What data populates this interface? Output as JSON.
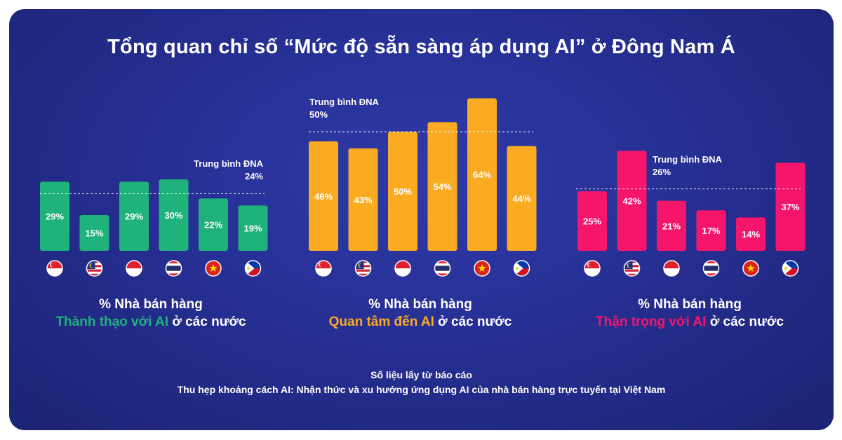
{
  "title": "Tổng quan chỉ số “Mức độ sẵn sàng áp dụng AI” ở Đông Nam Á",
  "countries": [
    {
      "name": "singapore-flag",
      "flag": "singapore"
    },
    {
      "name": "malaysia-flag",
      "flag": "malaysia"
    },
    {
      "name": "indonesia-flag",
      "flag": "indonesia"
    },
    {
      "name": "thailand-flag",
      "flag": "thailand"
    },
    {
      "name": "vietnam-flag",
      "flag": "vietnam"
    },
    {
      "name": "philippines-flag",
      "flag": "philippines"
    }
  ],
  "panels": [
    {
      "line1": "% Nhà bán hàng",
      "highlight": "Thành thạo với AI",
      "suffix": " ở các nước",
      "color": "#1fb27a",
      "avg_label": "Trung bình ĐNA",
      "avg_value_label": "24%"
    },
    {
      "line1": "% Nhà bán hàng",
      "highlight": "Quan tâm đến AI",
      "suffix": " ở các nước",
      "color": "#fbab22",
      "avg_label": "Trung bình ĐNA",
      "avg_value_label": "50%"
    },
    {
      "line1": "% Nhà bán hàng",
      "highlight": "Thận trọng với AI",
      "suffix": " ở các nước",
      "color": "#f5156b",
      "avg_label": "Trung bình ĐNA",
      "avg_value_label": "26%"
    }
  ],
  "chart_data": [
    {
      "type": "bar",
      "categories": [
        "Singapore",
        "Malaysia",
        "Indonesia",
        "Thailand",
        "Vietnam",
        "Philippines"
      ],
      "values": [
        29,
        15,
        29,
        30,
        22,
        19
      ],
      "value_labels": [
        "29%",
        "15%",
        "29%",
        "30%",
        "22%",
        "19%"
      ],
      "average": 24
    },
    {
      "type": "bar",
      "categories": [
        "Singapore",
        "Malaysia",
        "Indonesia",
        "Thailand",
        "Vietnam",
        "Philippines"
      ],
      "values": [
        46,
        43,
        50,
        54,
        64,
        44
      ],
      "value_labels": [
        "46%",
        "43%",
        "50%",
        "54%",
        "64%",
        "44%"
      ],
      "average": 50
    },
    {
      "type": "bar",
      "categories": [
        "Singapore",
        "Malaysia",
        "Indonesia",
        "Thailand",
        "Vietnam",
        "Philippines"
      ],
      "values": [
        25,
        42,
        21,
        17,
        14,
        37
      ],
      "value_labels": [
        "25%",
        "42%",
        "21%",
        "17%",
        "14%",
        "37%"
      ],
      "average": 26
    }
  ],
  "source": {
    "line1": "Số liệu lấy từ báo cáo",
    "line2": "Thu hẹp khoảng cách AI: Nhận thức và xu hướng ứng dụng AI của nhà bán hàng trực tuyến tại Việt Nam"
  }
}
